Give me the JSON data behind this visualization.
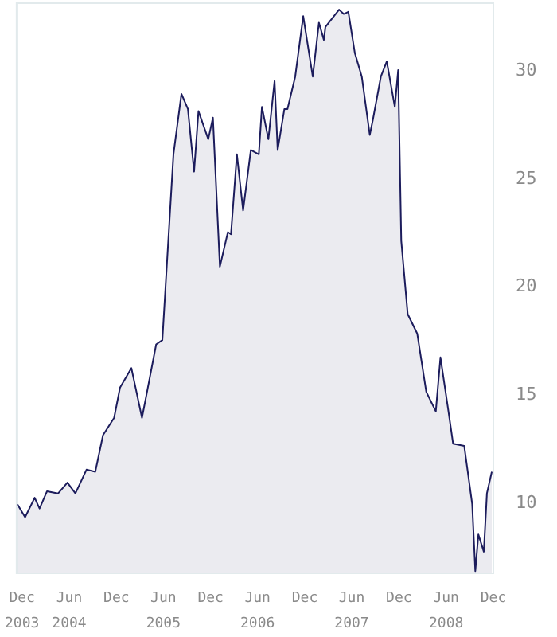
{
  "chart_data": {
    "type": "area",
    "x": [
      "2003-11-13",
      "2003-12-13",
      "2004-01-19",
      "2004-02-07",
      "2004-03-07",
      "2004-04-19",
      "2004-05-25",
      "2004-06-25",
      "2004-08-07",
      "2004-09-10",
      "2004-10-10",
      "2004-11-22",
      "2004-12-15",
      "2005-01-28",
      "2005-03-10",
      "2005-03-28",
      "2005-05-04",
      "2005-05-28",
      "2005-06-15",
      "2005-07-10",
      "2005-08-10",
      "2005-09-04",
      "2005-09-28",
      "2005-10-15",
      "2005-11-22",
      "2005-12-10",
      "2006-01-06",
      "2006-02-06",
      "2006-02-18",
      "2006-03-13",
      "2006-04-06",
      "2006-05-06",
      "2006-06-06",
      "2006-06-18",
      "2006-07-13",
      "2006-08-06",
      "2006-08-18",
      "2006-09-13",
      "2006-09-25",
      "2006-10-25",
      "2006-11-25",
      "2007-01-01",
      "2007-01-25",
      "2007-02-13",
      "2007-02-19",
      "2007-04-13",
      "2007-05-01",
      "2007-05-19",
      "2007-06-13",
      "2007-07-10",
      "2007-08-10",
      "2007-08-22",
      "2007-09-22",
      "2007-10-15",
      "2007-11-15",
      "2007-11-28",
      "2007-12-10",
      "2008-01-04",
      "2008-02-10",
      "2008-03-16",
      "2008-04-22",
      "2008-05-10",
      "2008-06-10",
      "2008-06-28",
      "2008-08-10",
      "2008-09-10",
      "2008-09-22",
      "2008-10-04",
      "2008-10-25",
      "2008-11-06",
      "2008-11-25"
    ],
    "series": [
      {
        "color": "#1c1c5c",
        "values": [
          9.9,
          9.3,
          10.2,
          9.7,
          10.5,
          10.4,
          10.9,
          10.4,
          11.5,
          11.4,
          13.1,
          13.9,
          15.3,
          16.2,
          13.9,
          15.0,
          17.3,
          17.5,
          21.1,
          26.1,
          28.9,
          28.2,
          25.3,
          28.1,
          26.8,
          27.8,
          20.9,
          22.5,
          22.4,
          26.1,
          23.5,
          26.3,
          26.1,
          28.3,
          26.8,
          29.5,
          26.3,
          28.2,
          28.2,
          29.7,
          32.5,
          29.7,
          32.2,
          31.4,
          32.0,
          32.8,
          32.6,
          32.7,
          30.8,
          29.7,
          27.0,
          27.7,
          29.7,
          30.4,
          28.3,
          30.0,
          22.1,
          18.7,
          17.8,
          15.1,
          14.2,
          16.7,
          14.2,
          12.7,
          12.6,
          9.9,
          6.8,
          8.5,
          7.7,
          10.4,
          11.4
        ]
      }
    ],
    "xlim": [
      "2003-11-10",
      "2008-12-01"
    ],
    "xticks": [
      {
        "value": "2003-12-01",
        "label": "Dec\n2003"
      },
      {
        "value": "2004-06-01",
        "label": "Jun\n2004"
      },
      {
        "value": "2004-12-01",
        "label": "Dec"
      },
      {
        "value": "2005-06-01",
        "label": "Jun\n2005"
      },
      {
        "value": "2005-12-01",
        "label": "Dec"
      },
      {
        "value": "2006-06-01",
        "label": "Jun\n2006"
      },
      {
        "value": "2006-12-01",
        "label": "Dec"
      },
      {
        "value": "2007-06-01",
        "label": "Jun\n2007"
      },
      {
        "value": "2007-12-01",
        "label": "Dec"
      },
      {
        "value": "2008-06-01",
        "label": "Jun\n2008"
      },
      {
        "value": "2008-12-01",
        "label": "Dec"
      }
    ],
    "ylim": [
      6.7,
      33.1
    ],
    "yticks": [
      10,
      15,
      20,
      25,
      30
    ],
    "grid": false
  }
}
